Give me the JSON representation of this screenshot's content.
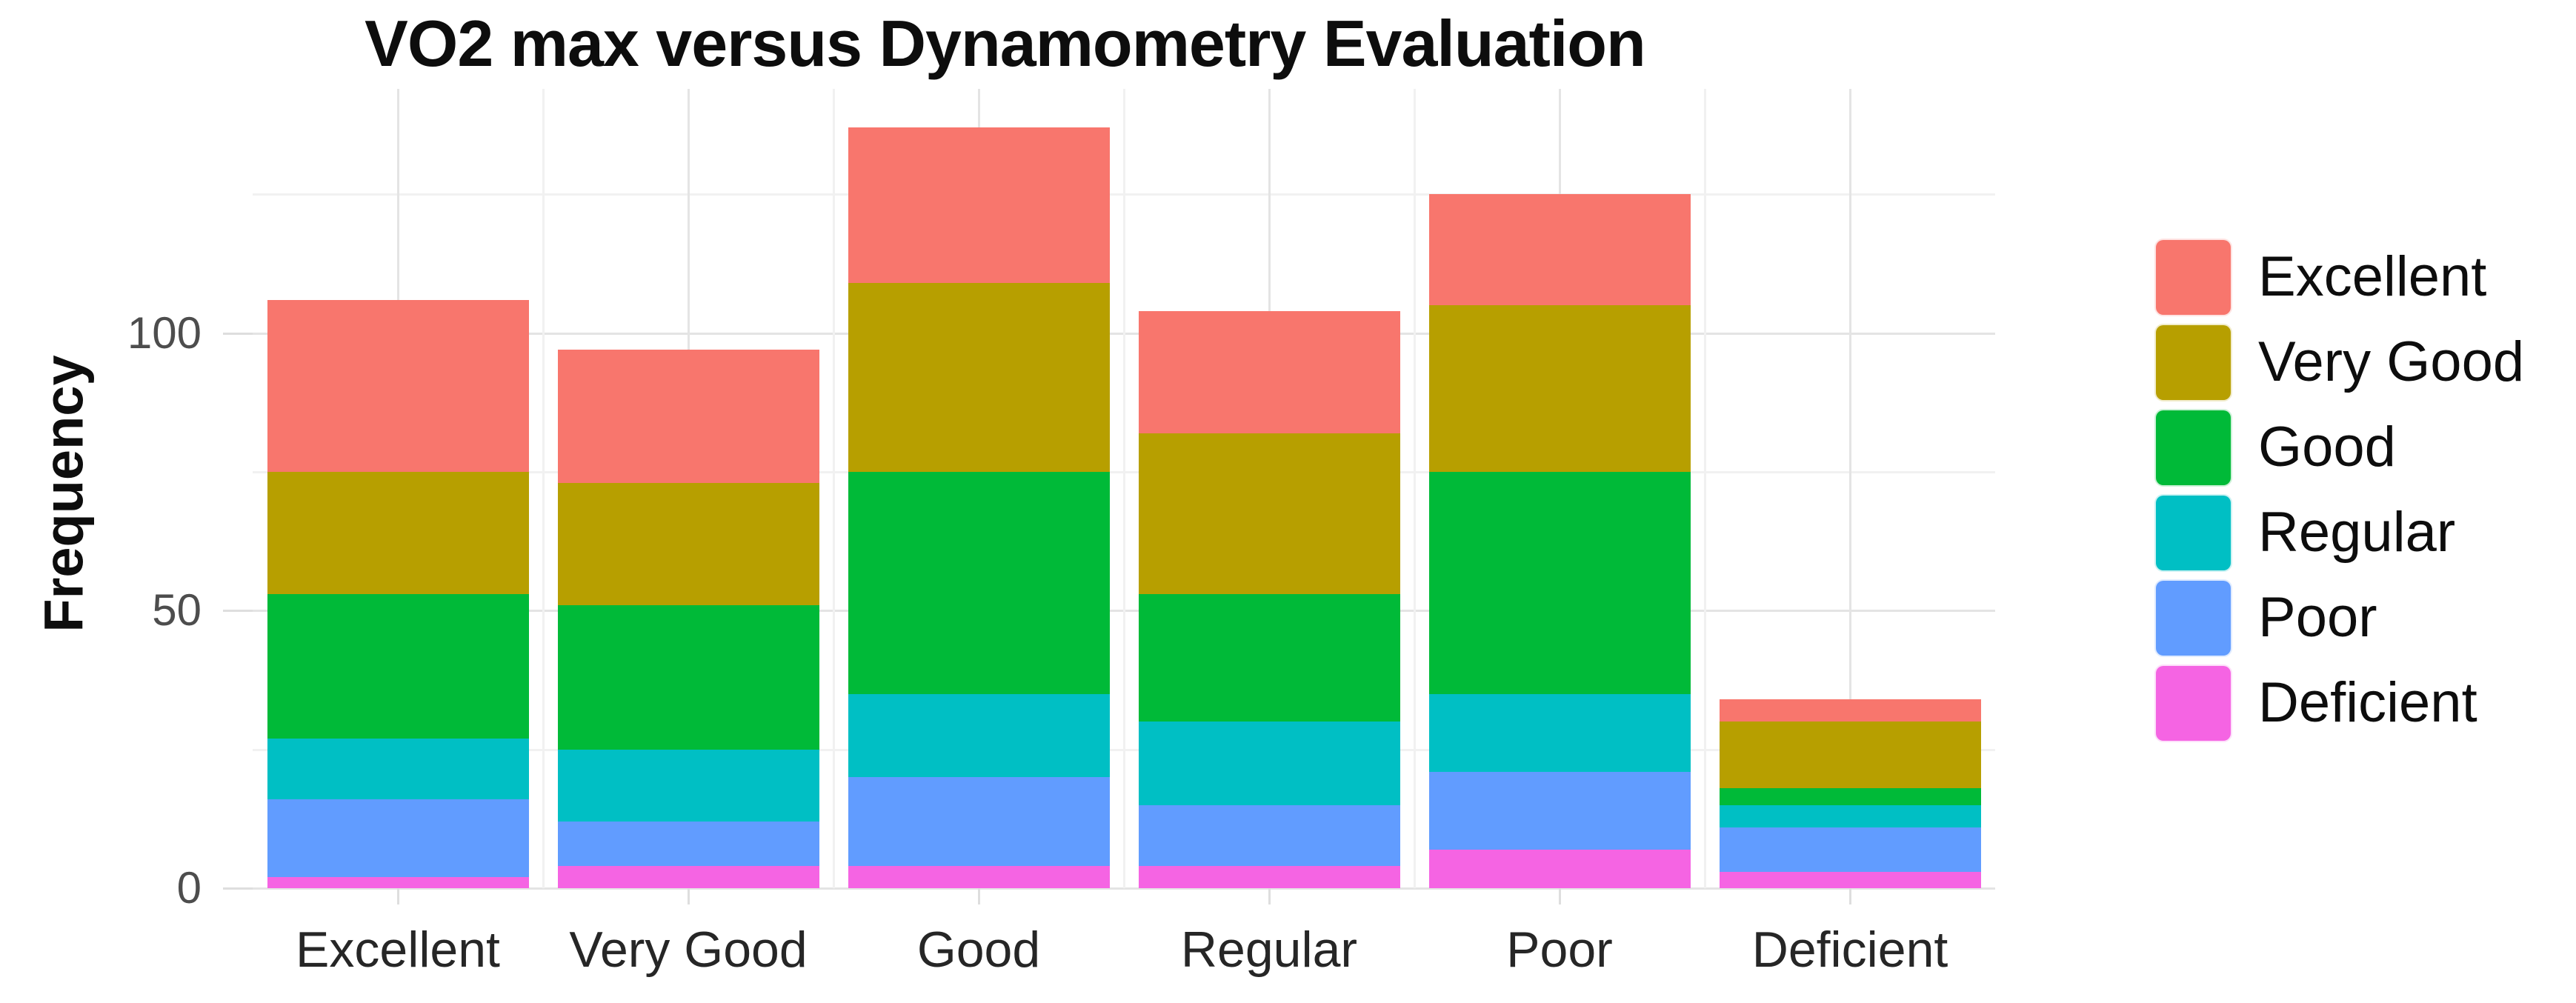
{
  "title": {
    "text": "VO2 max versus Dynamometry Evaluation"
  },
  "y_axis": {
    "label": "Frequency",
    "tick_labels": [
      "100",
      "50",
      "0"
    ]
  },
  "x_axis": {
    "tick_labels": [
      "Excellent",
      "Very Good",
      "Good",
      "Regular",
      "Poor",
      "Deficient"
    ]
  },
  "legend": {
    "position": "right",
    "items": [
      {
        "label": "Excellent",
        "color": "#F8766D"
      },
      {
        "label": "Very Good",
        "color": "#B79F00"
      },
      {
        "label": "Good",
        "color": "#00BA38"
      },
      {
        "label": "Regular",
        "color": "#00BFC4"
      },
      {
        "label": "Poor",
        "color": "#619CFF"
      },
      {
        "label": "Deficient",
        "color": "#F564E3"
      }
    ]
  },
  "chart_data": {
    "type": "bar",
    "stacked": true,
    "title": "VO2 max versus Dynamometry Evaluation",
    "xlabel": "",
    "ylabel": "Frequency",
    "categories": [
      "Excellent",
      "Very Good",
      "Good",
      "Regular",
      "Poor",
      "Deficient"
    ],
    "series_bottom_to_top": [
      {
        "name": "Deficient",
        "color": "#F564E3",
        "values": [
          2,
          4,
          4,
          4,
          7,
          3
        ]
      },
      {
        "name": "Poor",
        "color": "#619CFF",
        "values": [
          14,
          8,
          16,
          11,
          14,
          8
        ]
      },
      {
        "name": "Regular",
        "color": "#00BFC4",
        "values": [
          11,
          13,
          15,
          15,
          14,
          4
        ]
      },
      {
        "name": "Good",
        "color": "#00BA38",
        "values": [
          26,
          26,
          40,
          23,
          40,
          3
        ]
      },
      {
        "name": "Very Good",
        "color": "#B79F00",
        "values": [
          22,
          22,
          34,
          29,
          30,
          12
        ]
      },
      {
        "name": "Excellent",
        "color": "#F8766D",
        "values": [
          31,
          24,
          28,
          22,
          20,
          4
        ]
      }
    ],
    "bar_totals": [
      106,
      97,
      137,
      104,
      125,
      34
    ],
    "y_ticks_major": [
      0,
      50,
      100
    ],
    "y_ticks_minor": [
      25,
      75,
      125
    ],
    "ylim": [
      0,
      144
    ],
    "grid": true,
    "legend_position": "right",
    "legend_order_top_to_bottom": [
      "Excellent",
      "Very Good",
      "Good",
      "Regular",
      "Poor",
      "Deficient"
    ]
  }
}
